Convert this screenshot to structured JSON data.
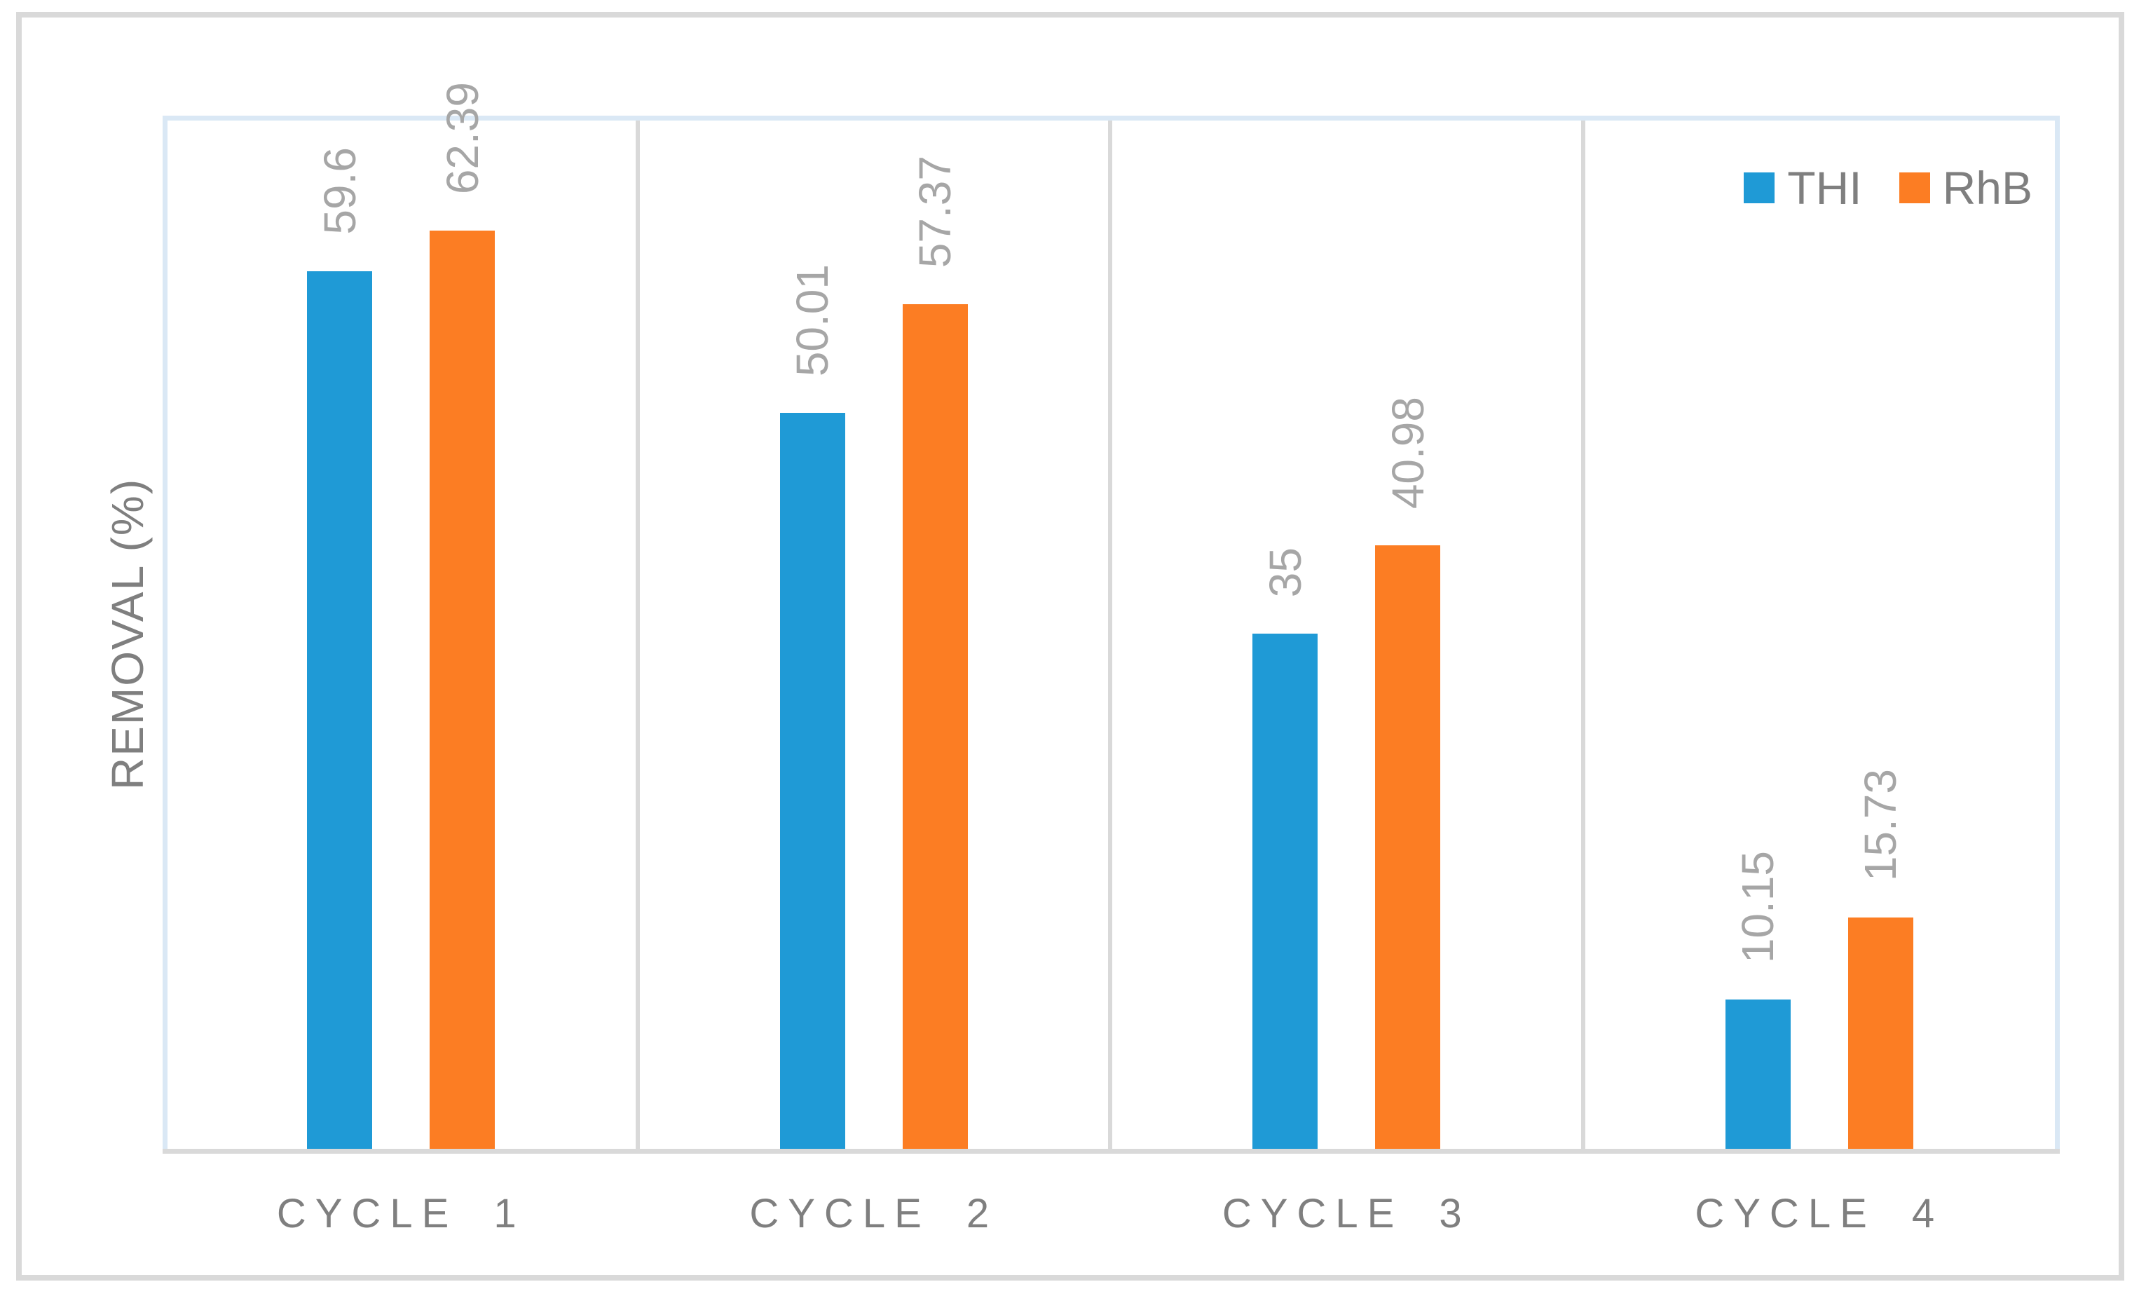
{
  "chart_data": {
    "type": "bar",
    "categories": [
      "CYCLE 1",
      "CYCLE 2",
      "CYCLE 3",
      "CYCLE 4"
    ],
    "series": [
      {
        "name": "THI",
        "color": "#1F9AD6",
        "values": [
          59.6,
          50.01,
          35,
          10.15
        ],
        "labels": [
          "59.6",
          "50.01",
          "35",
          "10.15"
        ]
      },
      {
        "name": "RhB",
        "color": "#FC7D23",
        "values": [
          62.39,
          57.37,
          40.98,
          15.73
        ],
        "labels": [
          "62.39",
          "57.37",
          "40.98",
          "15.73"
        ]
      }
    ],
    "title": "",
    "xlabel": "",
    "ylabel": "REMOVAL (%)",
    "ylim": [
      0,
      70
    ],
    "y_axis_ticks_visible": false,
    "grid": "vertical category separators only",
    "data_label_rotation": "90deg counterclockwise",
    "legend_position": "top-right inside plot"
  },
  "styles": {
    "plot_border_color": "#DAE8F5",
    "frame_color": "#D9D9D9",
    "axis_line_color": "#D9D9D9",
    "value_label_color": "#A6A6A6",
    "axis_text_color": "#7F7F7F",
    "background": "#FFFFFF"
  }
}
